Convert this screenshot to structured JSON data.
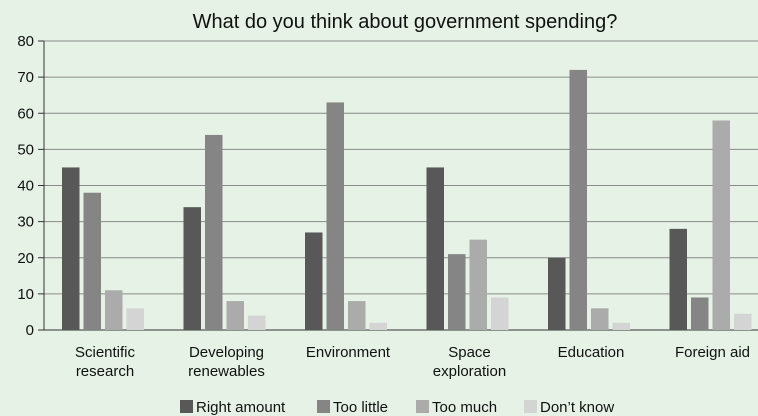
{
  "chart_data": {
    "type": "bar",
    "title": "What do you think about government spending?",
    "xlabel": "",
    "ylabel": "",
    "ylim": [
      0,
      80
    ],
    "yticks": [
      0,
      10,
      20,
      30,
      40,
      50,
      60,
      70,
      80
    ],
    "grid": true,
    "legend_position": "bottom",
    "categories": [
      [
        "Scientific",
        "research"
      ],
      [
        "Developing",
        "renewables"
      ],
      [
        "Environment"
      ],
      [
        "Space",
        "exploration"
      ],
      [
        "Education"
      ],
      [
        "Foreign aid"
      ]
    ],
    "series": [
      {
        "name": "Right amount",
        "color": "#585858",
        "values": [
          45,
          34,
          27,
          45,
          20,
          28
        ]
      },
      {
        "name": "Too little",
        "color": "#858585",
        "values": [
          38,
          54,
          63,
          21,
          72,
          9
        ]
      },
      {
        "name": "Too much",
        "color": "#ababab",
        "values": [
          11,
          8,
          8,
          25,
          6,
          58
        ]
      },
      {
        "name": "Don’t know",
        "color": "#d4d4d4",
        "values": [
          6,
          4,
          2,
          9,
          2,
          4.5
        ]
      }
    ]
  }
}
